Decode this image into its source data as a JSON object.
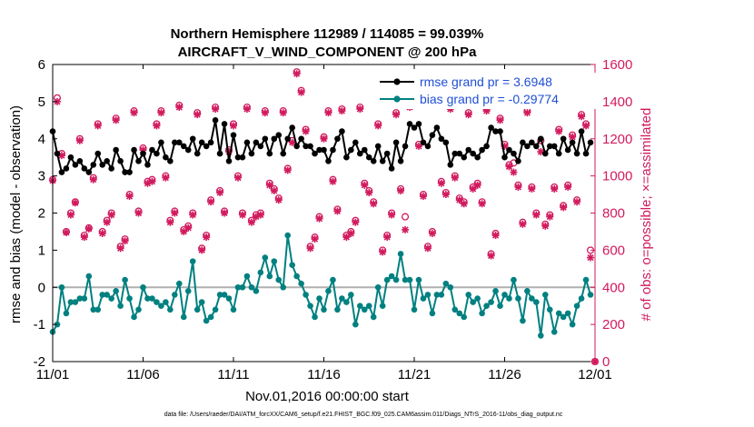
{
  "chart_data": {
    "type": "line",
    "title_line1": "Northern Hemisphere 112989 / 114085 = 99.039%",
    "title_line2": "AIRCRAFT_V_WIND_COMPONENT @ 200 hPa",
    "xlabel": "Nov.01,2016 00:00:00 start",
    "ylabel_left": "rmse and bias (model - observation)",
    "ylabel_right": "# of obs: o=possible; ×=assimilated",
    "footnote": "data file: /Users/raeder/DAI/ATM_forcXX/CAM6_setup/f.e21.FHIST_BGC.f09_025.CAM6assim.011/Diags_NTrS_2016-11/obs_diag_output.nc",
    "x_tick_labels": [
      "11/01",
      "11/06",
      "11/11",
      "11/16",
      "11/21",
      "11/26",
      "12/01"
    ],
    "x_tick_days": [
      0,
      5,
      10,
      15,
      20,
      25,
      30
    ],
    "xlim": [
      0,
      30
    ],
    "ylim_left": [
      -2,
      6
    ],
    "y_ticks_left": [
      "-2",
      "-1",
      "0",
      "1",
      "2",
      "3",
      "4",
      "5",
      "6"
    ],
    "ylim_right": [
      0,
      1600
    ],
    "y_ticks_right": [
      "0",
      "200",
      "400",
      "600",
      "800",
      "1000",
      "1200",
      "1400",
      "1600"
    ],
    "legend_placement": "top-right",
    "colors": {
      "rmse": "#000000",
      "bias": "#008080",
      "obs": "#d11a5e",
      "right_axis": "#d11a5e",
      "zero_line": "#b0b0b0",
      "legend_text": "#1f4fd6"
    },
    "series": [
      {
        "name": "rmse grand pr = 3.6948",
        "axis": "left",
        "marker": "filled-circle",
        "x": [
          0.0,
          0.25,
          0.5,
          0.75,
          1.0,
          1.25,
          1.5,
          1.75,
          2.0,
          2.25,
          2.5,
          2.75,
          3.0,
          3.25,
          3.5,
          3.75,
          4.0,
          4.25,
          4.5,
          4.75,
          5.0,
          5.25,
          5.5,
          5.75,
          6.0,
          6.25,
          6.5,
          6.75,
          7.0,
          7.25,
          7.5,
          7.75,
          8.0,
          8.25,
          8.5,
          8.75,
          9.0,
          9.25,
          9.5,
          9.75,
          10.0,
          10.25,
          10.5,
          10.75,
          11.0,
          11.25,
          11.5,
          11.75,
          12.0,
          12.25,
          12.5,
          12.75,
          13.0,
          13.25,
          13.5,
          13.75,
          14.0,
          14.25,
          14.5,
          14.75,
          15.0,
          15.25,
          15.5,
          15.75,
          16.0,
          16.25,
          16.5,
          16.75,
          17.0,
          17.25,
          17.5,
          17.75,
          18.0,
          18.25,
          18.5,
          18.75,
          19.0,
          19.25,
          19.5,
          19.75,
          20.0,
          20.25,
          20.5,
          20.75,
          21.0,
          21.25,
          21.5,
          21.75,
          22.0,
          22.25,
          22.5,
          22.75,
          23.0,
          23.25,
          23.5,
          23.75,
          24.0,
          24.25,
          24.5,
          24.75,
          25.0,
          25.25,
          25.5,
          25.75,
          26.0,
          26.25,
          26.5,
          26.75,
          27.0,
          27.25,
          27.5,
          27.75,
          28.0,
          28.25,
          28.5,
          28.75,
          29.0,
          29.25,
          29.5,
          29.75
        ],
        "values": [
          4.2,
          3.6,
          3.1,
          3.2,
          3.5,
          3.3,
          3.4,
          3.2,
          3.1,
          3.3,
          3.6,
          3.3,
          3.4,
          3.2,
          3.7,
          3.4,
          3.1,
          3.1,
          3.7,
          3.4,
          3.6,
          3.3,
          3.7,
          3.6,
          3.9,
          3.5,
          3.4,
          3.9,
          3.9,
          3.8,
          3.7,
          4.0,
          3.6,
          3.9,
          3.8,
          3.9,
          4.5,
          3.6,
          4.4,
          3.4,
          4.1,
          3.5,
          3.5,
          3.9,
          3.6,
          3.9,
          3.8,
          4.0,
          3.6,
          4.0,
          4.1,
          3.6,
          4.0,
          4.3,
          3.8,
          4.0,
          3.8,
          3.8,
          3.6,
          3.7,
          3.7,
          3.4,
          3.7,
          4.0,
          4.2,
          3.5,
          3.7,
          3.9,
          3.6,
          3.7,
          3.5,
          3.4,
          3.8,
          3.4,
          3.6,
          3.2,
          3.9,
          3.4,
          3.8,
          4.4,
          4.3,
          4.4,
          3.9,
          3.8,
          4.1,
          4.3,
          4.0,
          3.9,
          3.3,
          3.6,
          3.6,
          3.5,
          3.7,
          3.6,
          3.5,
          3.7,
          3.8,
          4.3,
          4.2,
          4.2,
          3.5,
          3.7,
          3.6,
          3.4,
          3.9,
          3.8,
          3.9,
          3.8,
          4.0,
          3.6,
          3.8,
          3.8,
          3.6,
          4.0,
          3.7,
          3.9,
          3.6,
          4.2,
          3.6,
          3.9
        ]
      },
      {
        "name": "bias grand pr = -0.29774",
        "axis": "left",
        "marker": "filled-circle",
        "x": [
          0.0,
          0.25,
          0.5,
          0.75,
          1.0,
          1.25,
          1.5,
          1.75,
          2.0,
          2.25,
          2.5,
          2.75,
          3.0,
          3.25,
          3.5,
          3.75,
          4.0,
          4.25,
          4.5,
          4.75,
          5.0,
          5.25,
          5.5,
          5.75,
          6.0,
          6.25,
          6.5,
          6.75,
          7.0,
          7.25,
          7.5,
          7.75,
          8.0,
          8.25,
          8.5,
          8.75,
          9.0,
          9.25,
          9.5,
          9.75,
          10.0,
          10.25,
          10.5,
          10.75,
          11.0,
          11.25,
          11.5,
          11.75,
          12.0,
          12.25,
          12.5,
          12.75,
          13.0,
          13.25,
          13.5,
          13.75,
          14.0,
          14.25,
          14.5,
          14.75,
          15.0,
          15.25,
          15.5,
          15.75,
          16.0,
          16.25,
          16.5,
          16.75,
          17.0,
          17.25,
          17.5,
          17.75,
          18.0,
          18.25,
          18.5,
          18.75,
          19.0,
          19.25,
          19.5,
          19.75,
          20.0,
          20.25,
          20.5,
          20.75,
          21.0,
          21.25,
          21.5,
          21.75,
          22.0,
          22.25,
          22.5,
          22.75,
          23.0,
          23.25,
          23.5,
          23.75,
          24.0,
          24.25,
          24.5,
          24.75,
          25.0,
          25.25,
          25.5,
          25.75,
          26.0,
          26.25,
          26.5,
          26.75,
          27.0,
          27.25,
          27.5,
          27.75,
          28.0,
          28.25,
          28.5,
          28.75,
          29.0,
          29.25,
          29.5,
          29.75
        ],
        "values": [
          -1.2,
          -1.0,
          0.0,
          -0.7,
          -0.4,
          -0.4,
          -0.3,
          -0.3,
          0.3,
          -0.6,
          -0.6,
          -0.2,
          -0.2,
          -0.3,
          -0.1,
          -0.5,
          0.2,
          -0.3,
          -0.8,
          -0.6,
          0.0,
          -0.3,
          -0.3,
          -0.4,
          -0.5,
          -0.4,
          -0.6,
          -0.2,
          0.1,
          -0.8,
          -0.1,
          0.7,
          -0.6,
          -0.4,
          -0.9,
          -0.8,
          -0.6,
          -0.2,
          -0.2,
          -0.3,
          -0.6,
          0.0,
          0.0,
          0.3,
          0.0,
          -0.1,
          0.4,
          0.8,
          0.3,
          0.7,
          0.2,
          0.0,
          1.4,
          0.6,
          0.3,
          0.1,
          -0.2,
          -0.5,
          -0.8,
          -0.3,
          -0.6,
          -0.1,
          0.2,
          -0.6,
          -0.3,
          -0.4,
          -0.2,
          -1.0,
          -0.5,
          -0.6,
          -0.5,
          -0.8,
          0.0,
          -0.5,
          0.2,
          0.3,
          0.2,
          0.9,
          0.2,
          0.2,
          -0.6,
          0.2,
          -0.3,
          -0.2,
          -0.7,
          -0.2,
          -0.2,
          0.1,
          0.0,
          -0.6,
          -0.7,
          -0.8,
          -0.2,
          -0.4,
          -0.3,
          -0.7,
          -0.5,
          -0.4,
          -0.1,
          -0.5,
          -0.2,
          -0.3,
          0.2,
          -0.3,
          -0.9,
          -0.1,
          -0.3,
          -0.4,
          -1.3,
          -0.2,
          -0.6,
          -1.2,
          -0.7,
          -0.8,
          -0.7,
          -1.0,
          -0.5,
          -0.3,
          0.2,
          -0.2
        ]
      },
      {
        "name": "# of obs possible",
        "axis": "right",
        "marker": "open-circle",
        "x": [
          0.0,
          0.25,
          0.5,
          0.75,
          1.0,
          1.25,
          1.5,
          1.75,
          2.0,
          2.25,
          2.5,
          2.75,
          3.0,
          3.25,
          3.5,
          3.75,
          4.0,
          4.25,
          4.5,
          4.75,
          5.0,
          5.25,
          5.5,
          5.75,
          6.0,
          6.25,
          6.5,
          6.75,
          7.0,
          7.25,
          7.5,
          7.75,
          8.0,
          8.25,
          8.5,
          8.75,
          9.0,
          9.25,
          9.5,
          9.75,
          10.0,
          10.25,
          10.5,
          10.75,
          11.0,
          11.25,
          11.5,
          11.75,
          12.0,
          12.25,
          12.5,
          12.75,
          13.0,
          13.25,
          13.5,
          13.75,
          14.0,
          14.25,
          14.5,
          14.75,
          15.0,
          15.25,
          15.5,
          15.75,
          16.0,
          16.25,
          16.5,
          16.75,
          17.0,
          17.25,
          17.5,
          17.75,
          18.0,
          18.25,
          18.5,
          18.75,
          19.0,
          19.25,
          19.5,
          19.75,
          20.0,
          20.25,
          20.5,
          20.75,
          21.0,
          21.25,
          21.5,
          21.75,
          22.0,
          22.25,
          22.5,
          22.75,
          23.0,
          23.25,
          23.5,
          23.75,
          24.0,
          24.25,
          24.5,
          24.75,
          25.0,
          25.25,
          25.5,
          25.75,
          26.0,
          26.25,
          26.5,
          26.75,
          27.0,
          27.25,
          27.5,
          27.75,
          28.0,
          28.25,
          28.5,
          28.75,
          29.0,
          29.25,
          29.5,
          29.75,
          30.0
        ],
        "values": [
          980,
          1420,
          1120,
          700,
          800,
          860,
          1200,
          680,
          720,
          990,
          1280,
          700,
          760,
          800,
          1310,
          620,
          660,
          900,
          1350,
          810,
          1150,
          970,
          980,
          1280,
          1350,
          1000,
          760,
          810,
          1380,
          710,
          730,
          800,
          1340,
          610,
          680,
          870,
          1370,
          920,
          810,
          1140,
          1280,
          1000,
          800,
          1370,
          760,
          790,
          800,
          1350,
          960,
          930,
          880,
          1350,
          1040,
          1190,
          1560,
          1460,
          1250,
          620,
          670,
          780,
          1210,
          1350,
          980,
          820,
          1360,
          680,
          700,
          760,
          1370,
          960,
          920,
          860,
          1280,
          600,
          680,
          800,
          1340,
          930,
          780,
          1380,
          1420,
          1170,
          900,
          620,
          700,
          1460,
          970,
          910,
          1370,
          1000,
          880,
          860,
          1340,
          940,
          960,
          860,
          1360,
          580,
          690,
          1310,
          1170,
          1060,
          1070,
          950,
          750,
          1350,
          940,
          800,
          1190,
          740,
          790,
          940,
          1250,
          840,
          950,
          1220,
          870,
          1330,
          1280,
          600,
          0
        ]
      },
      {
        "name": "# of obs assimilated",
        "axis": "right",
        "marker": "asterisk",
        "x": [
          0.0,
          0.25,
          0.5,
          0.75,
          1.0,
          1.25,
          1.5,
          1.75,
          2.0,
          2.25,
          2.5,
          2.75,
          3.0,
          3.25,
          3.5,
          3.75,
          4.0,
          4.25,
          4.5,
          4.75,
          5.0,
          5.25,
          5.5,
          5.75,
          6.0,
          6.25,
          6.5,
          6.75,
          7.0,
          7.25,
          7.5,
          7.75,
          8.0,
          8.25,
          8.5,
          8.75,
          9.0,
          9.25,
          9.5,
          9.75,
          10.0,
          10.25,
          10.5,
          10.75,
          11.0,
          11.25,
          11.5,
          11.75,
          12.0,
          12.25,
          12.5,
          12.75,
          13.0,
          13.25,
          13.5,
          13.75,
          14.0,
          14.25,
          14.5,
          14.75,
          15.0,
          15.25,
          15.5,
          15.75,
          16.0,
          16.25,
          16.5,
          16.75,
          17.0,
          17.25,
          17.5,
          17.75,
          18.0,
          18.25,
          18.5,
          18.75,
          19.0,
          19.25,
          19.5,
          19.75,
          20.0,
          20.25,
          20.5,
          20.75,
          21.0,
          21.25,
          21.5,
          21.75,
          22.0,
          22.25,
          22.5,
          22.75,
          23.0,
          23.25,
          23.5,
          23.75,
          24.0,
          24.25,
          24.5,
          24.75,
          25.0,
          25.25,
          25.5,
          25.75,
          26.0,
          26.25,
          26.5,
          26.75,
          27.0,
          27.25,
          27.5,
          27.75,
          28.0,
          28.25,
          28.5,
          28.75,
          29.0,
          29.25,
          29.5,
          29.75,
          30.0
        ],
        "values": [
          975,
          1400,
          1110,
          695,
          790,
          855,
          1190,
          670,
          715,
          980,
          1270,
          690,
          750,
          790,
          1300,
          610,
          650,
          890,
          1340,
          800,
          1140,
          960,
          970,
          1270,
          1340,
          990,
          750,
          800,
          1370,
          700,
          720,
          790,
          1330,
          600,
          670,
          860,
          1360,
          910,
          800,
          1130,
          1270,
          990,
          790,
          1360,
          750,
          780,
          790,
          1340,
          950,
          920,
          870,
          1340,
          1030,
          1180,
          1550,
          1450,
          1240,
          610,
          660,
          770,
          1200,
          1340,
          970,
          810,
          1350,
          670,
          690,
          750,
          1360,
          950,
          910,
          850,
          1270,
          590,
          670,
          790,
          1330,
          920,
          710,
          1370,
          1410,
          1160,
          890,
          610,
          690,
          1450,
          960,
          900,
          1360,
          990,
          870,
          850,
          1330,
          930,
          950,
          850,
          1350,
          570,
          680,
          1300,
          1160,
          1050,
          1020,
          940,
          740,
          1340,
          930,
          790,
          1130,
          730,
          780,
          930,
          1240,
          830,
          940,
          1210,
          860,
          1320,
          1270,
          560,
          0
        ]
      }
    ]
  }
}
